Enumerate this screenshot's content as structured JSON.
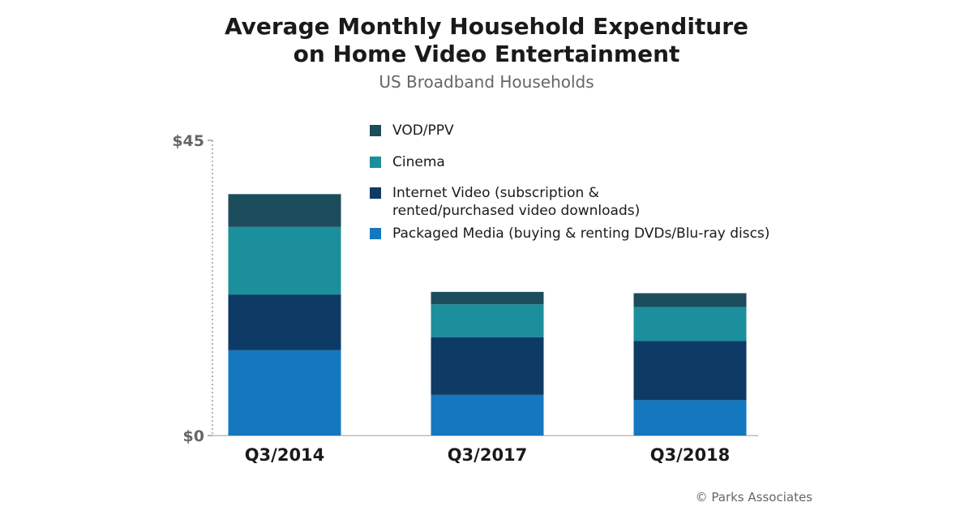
{
  "header": {
    "title_line1": "Average Monthly Household Expenditure",
    "title_line2": "on Home Video Entertainment",
    "subtitle": "US Broadband Households"
  },
  "footer": {
    "copyright": "© Parks Associates"
  },
  "colors": {
    "vod_ppv": "#1b4d5c",
    "cinema": "#1c8f9c",
    "internet_video": "#0e3a66",
    "packaged_media": "#1478c0"
  },
  "chart_data": {
    "type": "bar",
    "stacked": true,
    "categories": [
      "Q3/2014",
      "Q3/2017",
      "Q3/2018"
    ],
    "series": [
      {
        "name": "Packaged Media (buying & renting DVDs/Blu-ray discs)",
        "values": [
          13.0,
          6.2,
          5.4
        ],
        "color": "#1478c0"
      },
      {
        "name": "Internet Video (subscription & rented/purchased video downloads)",
        "values": [
          8.5,
          8.8,
          9.0
        ],
        "color": "#0e3a66"
      },
      {
        "name": "Cinema",
        "values": [
          10.3,
          5.0,
          5.2
        ],
        "color": "#1c8f9c"
      },
      {
        "name": "VOD/PPV",
        "values": [
          5.0,
          1.9,
          2.1
        ],
        "color": "#1b4d5c"
      }
    ],
    "legend_order": [
      "VOD/PPV",
      "Cinema",
      "Internet Video (subscription & rented/purchased video downloads)",
      "Packaged Media (buying & renting DVDs/Blu-ray discs)"
    ],
    "yticks": [
      "$0",
      "$45"
    ],
    "ylim": [
      0,
      45
    ],
    "grid": false,
    "legend_position": "top-right"
  }
}
